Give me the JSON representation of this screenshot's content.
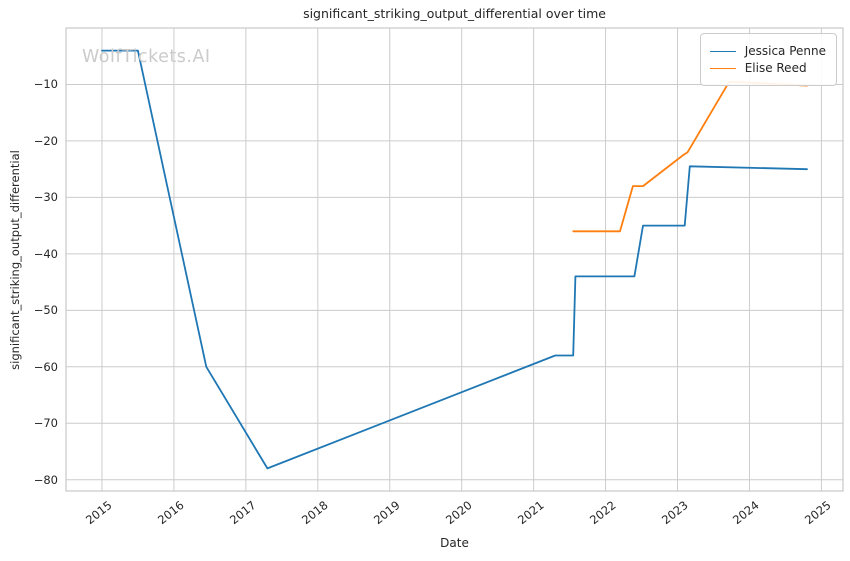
{
  "chart_data": {
    "type": "line",
    "title": "significant_striking_output_differential over time",
    "xlabel": "Date",
    "ylabel": "significant_striking_output_differential",
    "watermark": "WolfTickets.AI",
    "grid": true,
    "legend_position": "upper right",
    "xlim": [
      2014.5,
      2025.3
    ],
    "ylim": [
      -82,
      0
    ],
    "x_ticks": [
      2015,
      2016,
      2017,
      2018,
      2019,
      2020,
      2021,
      2022,
      2023,
      2024,
      2025
    ],
    "x_tick_labels": [
      "2015",
      "2016",
      "2017",
      "2018",
      "2019",
      "2020",
      "2021",
      "2022",
      "2023",
      "2024",
      "2025"
    ],
    "y_ticks": [
      -10,
      -20,
      -30,
      -40,
      -50,
      -60,
      -70,
      -80
    ],
    "y_tick_labels": [
      "−10",
      "−20",
      "−30",
      "−40",
      "−50",
      "−60",
      "−70",
      "−80"
    ],
    "colors": {
      "grid": "#cccccc",
      "spine": "#c7c7c7",
      "text": "#262626",
      "watermark": "#cbcbcb"
    },
    "series": [
      {
        "name": "Jessica Penne",
        "color": "#1f77b4",
        "points": [
          [
            2015.0,
            -4
          ],
          [
            2015.5,
            -4
          ],
          [
            2016.45,
            -60
          ],
          [
            2017.3,
            -78
          ],
          [
            2021.3,
            -58
          ],
          [
            2021.55,
            -58
          ],
          [
            2021.58,
            -44
          ],
          [
            2022.4,
            -44
          ],
          [
            2022.52,
            -35
          ],
          [
            2023.1,
            -35
          ],
          [
            2023.17,
            -24.5
          ],
          [
            2024.8,
            -25
          ]
        ]
      },
      {
        "name": "Elise Reed",
        "color": "#ff7f0e",
        "points": [
          [
            2021.55,
            -36
          ],
          [
            2022.2,
            -36
          ],
          [
            2022.38,
            -28
          ],
          [
            2022.52,
            -28
          ],
          [
            2023.08,
            -22.5
          ],
          [
            2023.14,
            -22
          ],
          [
            2023.72,
            -9.5
          ],
          [
            2024.8,
            -10.2
          ]
        ]
      }
    ]
  }
}
